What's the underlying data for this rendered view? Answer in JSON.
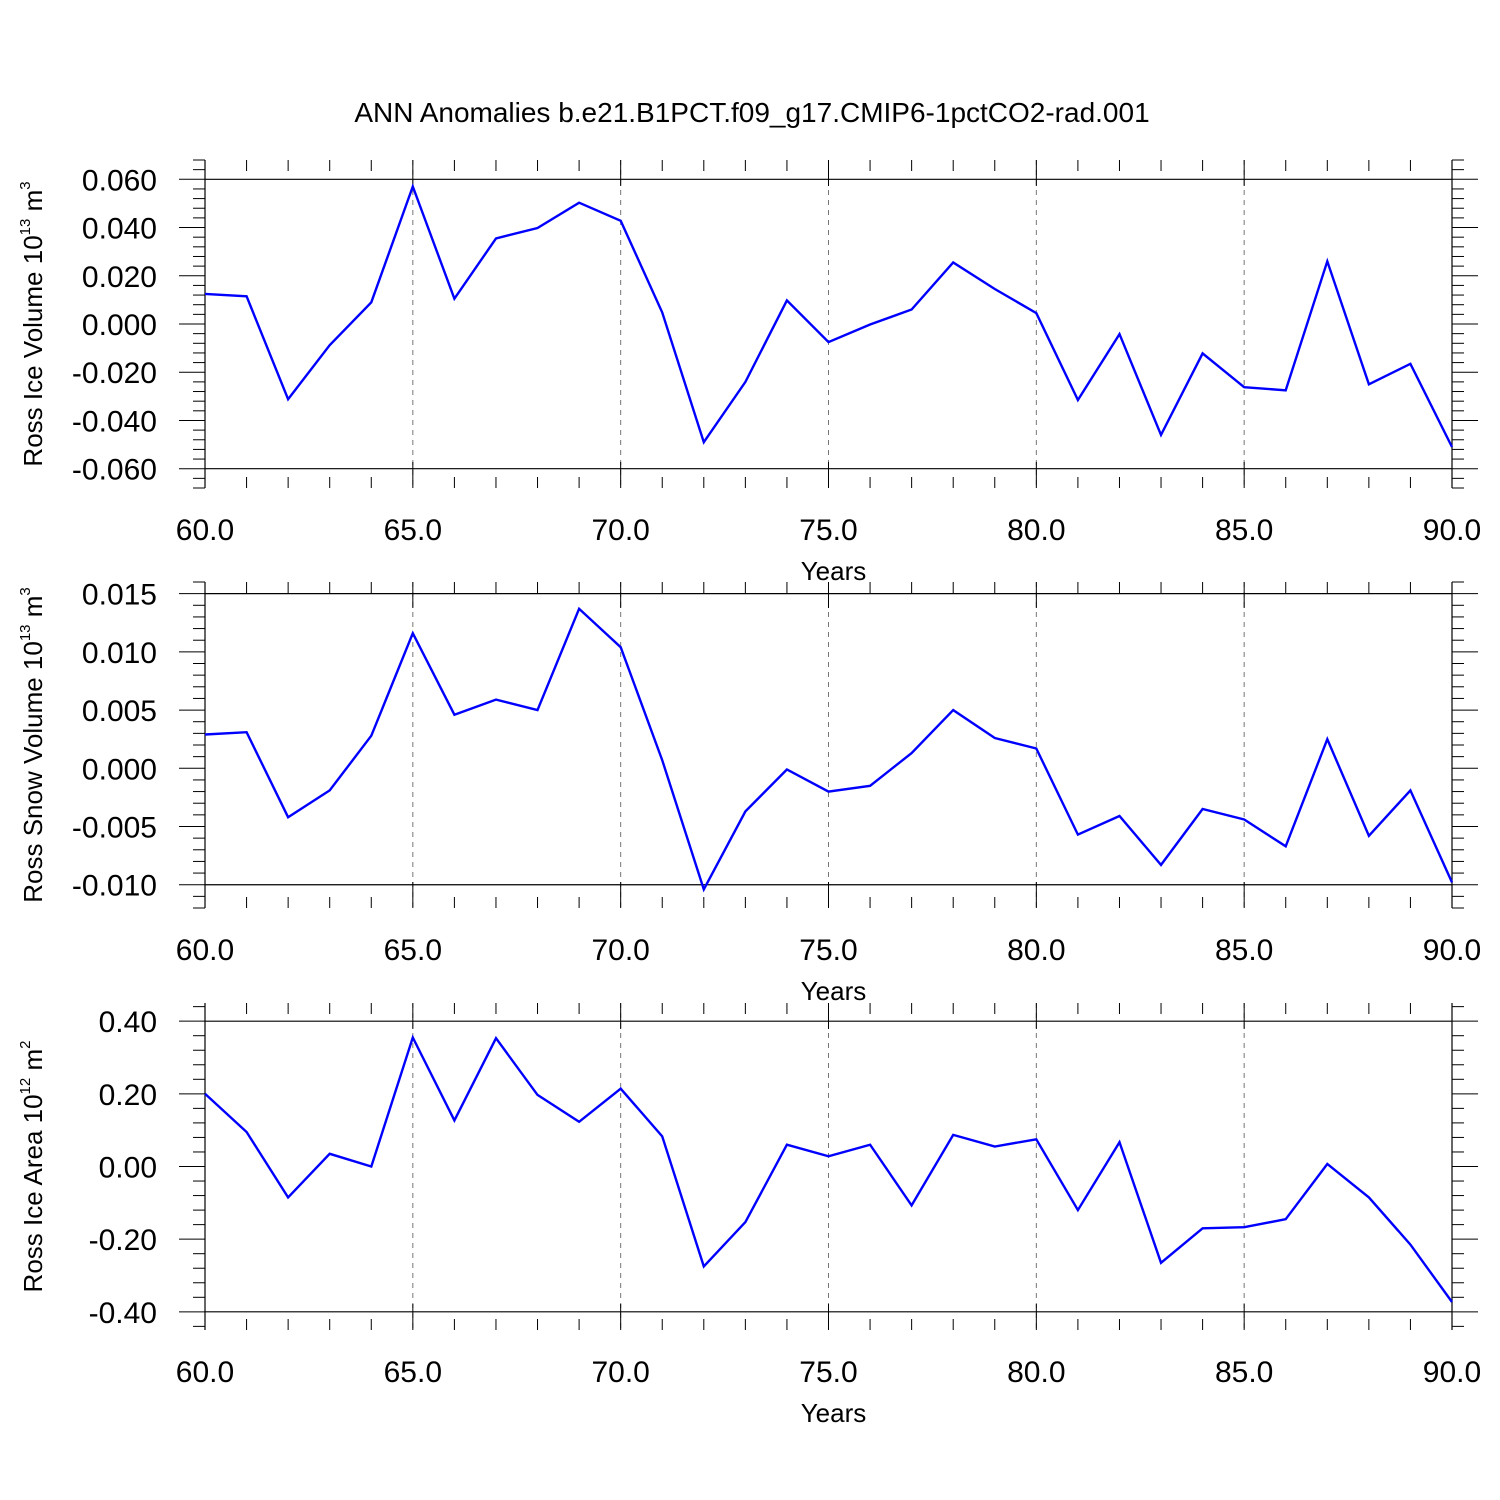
{
  "title": "ANN Anomalies b.e21.B1PCT.f09_g17.CMIP6-1pctCO2-rad.001",
  "chart_data": [
    {
      "type": "line",
      "xlabel": "Years",
      "ylabel_parts": [
        "Ross Ice Volume 10",
        "13",
        " m",
        "3"
      ],
      "xlim": [
        60,
        90
      ],
      "ylim": [
        -0.068,
        0.068
      ],
      "x_ticks": [
        60,
        65,
        70,
        75,
        80,
        85,
        90
      ],
      "x_tick_labels": [
        "60.0",
        "65.0",
        "70.0",
        "75.0",
        "80.0",
        "85.0",
        "90.0"
      ],
      "y_ticks": [
        -0.06,
        -0.04,
        -0.02,
        0.0,
        0.02,
        0.04,
        0.06
      ],
      "y_tick_labels": [
        "-0.060",
        "-0.040",
        "-0.020",
        "0.000",
        "0.020",
        "0.040",
        "0.060"
      ],
      "grid": "vertical dashed at major x ticks",
      "line_color": "#0000ff",
      "x": [
        60,
        61,
        62,
        63,
        64,
        65,
        66,
        67,
        68,
        69,
        70,
        71,
        72,
        73,
        74,
        75,
        76,
        77,
        78,
        79,
        80,
        81,
        82,
        83,
        84,
        85,
        86,
        87,
        88,
        89,
        90
      ],
      "values": [
        0.0125,
        0.0115,
        -0.0312,
        -0.0088,
        0.009,
        0.057,
        0.0105,
        0.0355,
        0.0398,
        0.0503,
        0.0428,
        0.0048,
        -0.049,
        -0.024,
        0.0098,
        -0.0075,
        -0.0002,
        0.006,
        0.0255,
        0.0145,
        0.0045,
        -0.0315,
        -0.0042,
        -0.046,
        -0.0122,
        -0.0262,
        -0.0275,
        0.026,
        -0.025,
        -0.0165,
        -0.051
      ]
    },
    {
      "type": "line",
      "xlabel": "Years",
      "ylabel_parts": [
        "Ross Snow Volume 10",
        "13",
        " m",
        "3"
      ],
      "xlim": [
        60,
        90
      ],
      "ylim": [
        -0.012,
        0.016
      ],
      "x_ticks": [
        60,
        65,
        70,
        75,
        80,
        85,
        90
      ],
      "x_tick_labels": [
        "60.0",
        "65.0",
        "70.0",
        "75.0",
        "80.0",
        "85.0",
        "90.0"
      ],
      "y_ticks": [
        -0.01,
        -0.005,
        0.0,
        0.005,
        0.01,
        0.015
      ],
      "y_tick_labels": [
        "-0.010",
        "-0.005",
        "0.000",
        "0.005",
        "0.010",
        "0.015"
      ],
      "grid": "vertical dashed at major x ticks",
      "line_color": "#0000ff",
      "x": [
        60,
        61,
        62,
        63,
        64,
        65,
        66,
        67,
        68,
        69,
        70,
        71,
        72,
        73,
        74,
        75,
        76,
        77,
        78,
        79,
        80,
        81,
        82,
        83,
        84,
        85,
        86,
        87,
        88,
        89,
        90
      ],
      "values": [
        0.0029,
        0.0031,
        -0.0042,
        -0.0019,
        0.0028,
        0.0116,
        0.0046,
        0.0059,
        0.005,
        0.0137,
        0.0104,
        0.0007,
        -0.0104,
        -0.0037,
        -0.0001,
        -0.002,
        -0.0015,
        0.0013,
        0.005,
        0.0026,
        0.0017,
        -0.0057,
        -0.0041,
        -0.0083,
        -0.0035,
        -0.0044,
        -0.0067,
        0.0025,
        -0.0058,
        -0.0019,
        -0.0098
      ]
    },
    {
      "type": "line",
      "xlabel": "Years",
      "ylabel_parts": [
        "Ross Ice Area 10",
        "12",
        " m",
        "2"
      ],
      "xlim": [
        60,
        90
      ],
      "ylim": [
        -0.45,
        0.45
      ],
      "x_ticks": [
        60,
        65,
        70,
        75,
        80,
        85,
        90
      ],
      "x_tick_labels": [
        "60.0",
        "65.0",
        "70.0",
        "75.0",
        "80.0",
        "85.0",
        "90.0"
      ],
      "y_ticks": [
        -0.4,
        -0.2,
        0.0,
        0.2,
        0.4
      ],
      "y_tick_labels": [
        "-0.40",
        "-0.20",
        "0.00",
        "0.20",
        "0.40"
      ],
      "grid": "vertical dashed at major x ticks",
      "line_color": "#0000ff",
      "x": [
        60,
        61,
        62,
        63,
        64,
        65,
        66,
        67,
        68,
        69,
        70,
        71,
        72,
        73,
        74,
        75,
        76,
        77,
        78,
        79,
        80,
        81,
        82,
        83,
        84,
        85,
        86,
        87,
        88,
        89,
        90
      ],
      "values": [
        0.2,
        0.095,
        -0.085,
        0.035,
        0.0,
        0.355,
        0.127,
        0.353,
        0.197,
        0.123,
        0.214,
        0.083,
        -0.275,
        -0.153,
        0.06,
        0.028,
        0.06,
        -0.107,
        0.087,
        0.055,
        0.075,
        -0.12,
        0.067,
        -0.265,
        -0.17,
        -0.167,
        -0.145,
        0.007,
        -0.085,
        -0.215,
        -0.373
      ]
    }
  ]
}
